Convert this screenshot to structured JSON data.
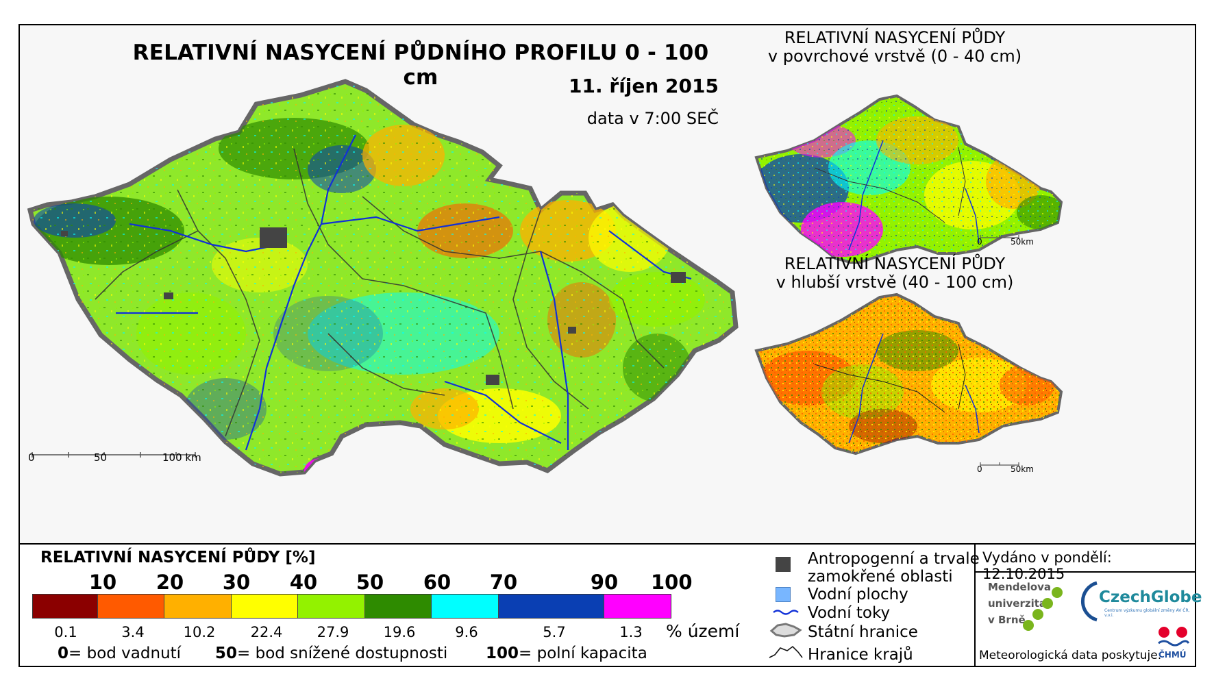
{
  "titles": {
    "main": "RELATIVNÍ NASYCENÍ PŮDNÍHO PROFILU 0 - 100 cm",
    "date": "11. říjen 2015",
    "data_time": "data v 7:00 SEČ",
    "surface_line1": "RELATIVNÍ NASYCENÍ PŮDY",
    "surface_line2": "v povrchové vrstvě (0 - 40 cm)",
    "deep_line1": "RELATIVNÍ NASYCENÍ PŮDY",
    "deep_line2": "v hlubší vrstvě (40 - 100 cm)"
  },
  "scalebars": {
    "main_0": "0",
    "main_50": "50",
    "main_100": "100 km",
    "small_0": "0",
    "small_50": "50km"
  },
  "legend": {
    "title": "RELATIVNÍ NASYCENÍ PŮDY [%]",
    "ticks": [
      "10",
      "20",
      "30",
      "40",
      "50",
      "60",
      "70",
      "90",
      "100"
    ],
    "colors": [
      "#8b0000",
      "#ff5a00",
      "#ffb000",
      "#ffff00",
      "#93f200",
      "#2e8b00",
      "#00ffff",
      "#0a3fb3",
      "#ff00ff"
    ],
    "percent_of_area": [
      "0.1",
      "3.4",
      "10.2",
      "22.4",
      "27.9",
      "19.6",
      "9.6",
      "5.7",
      "1.3"
    ],
    "percent_unit": "% území",
    "note_wilting_num": "0",
    "note_wilting": "= bod vadnutí",
    "note_reduced_num": "50",
    "note_reduced": "= bod snížené dostupnosti",
    "note_capacity_num": "100",
    "note_capacity": "= polní kapacita"
  },
  "key": {
    "anthropogenic_line1": "Antropogenní a trvale",
    "anthropogenic_line2": "zamokřené oblasti",
    "water_bodies": "Vodní plochy",
    "rivers": "Vodní toky",
    "state_border": "Státní hranice",
    "region_border": "Hranice krajů"
  },
  "issued": "Vydáno v pondělí: 12.10.2015",
  "logos": {
    "mendel_1": "Mendelova",
    "mendel_2": "univerzita",
    "mendel_3": "v Brně",
    "czechglobe": "CzechGlobe",
    "czechglobe_sub": "Centrum výzkumu globální změny AV ČR, v.v.i.",
    "chmu": "ČHMÚ"
  },
  "provider": "Meteorologická data poskytuje:"
}
